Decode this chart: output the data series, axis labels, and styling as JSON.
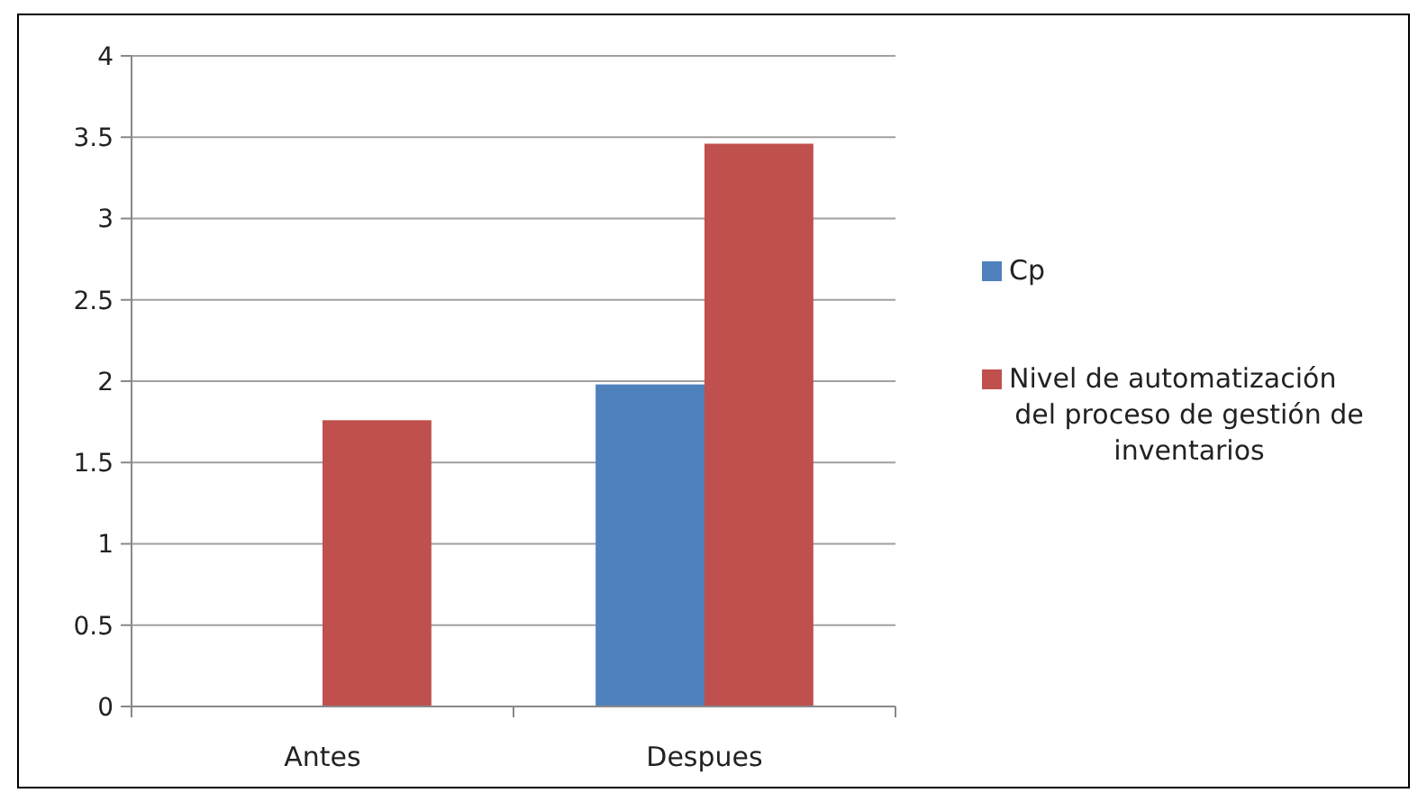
{
  "chart_data": {
    "type": "bar",
    "categories": [
      "Antes",
      "Despues"
    ],
    "series": [
      {
        "name": "Cp",
        "color": "#4f81bd",
        "values": [
          null,
          1.98
        ]
      },
      {
        "name": "Nivel de automatización del proceso de gestión de inventarios",
        "color": "#c0504d",
        "values": [
          1.76,
          3.46
        ]
      }
    ],
    "ylim": [
      0,
      4
    ],
    "yticks": [
      0,
      0.5,
      1,
      1.5,
      2,
      2.5,
      3,
      3.5,
      4
    ],
    "grid": "y",
    "legend": "right"
  }
}
